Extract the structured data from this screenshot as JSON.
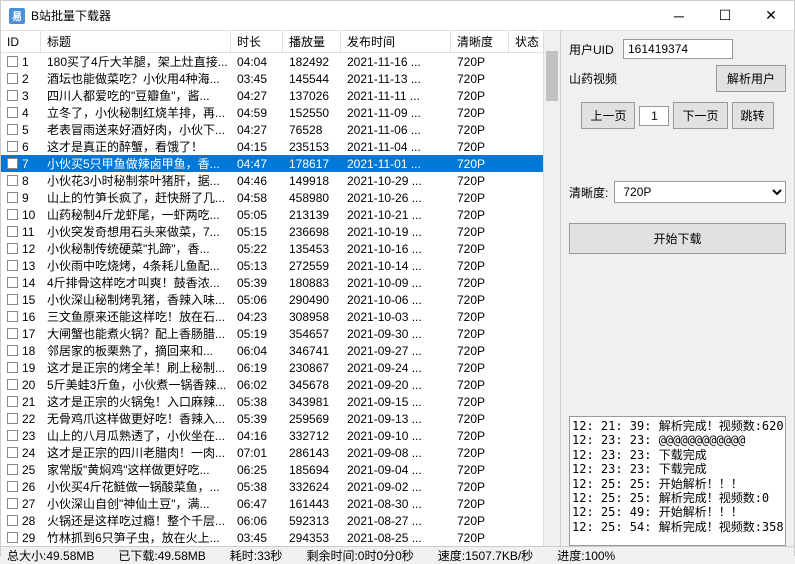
{
  "window": {
    "title": "B站批量下载器"
  },
  "columns": {
    "id": "ID",
    "title": "标题",
    "duration": "时长",
    "plays": "播放量",
    "pubtime": "发布时间",
    "resolution": "清晰度",
    "status": "状态"
  },
  "rows": [
    {
      "id": "1",
      "title": "180买了4斤大羊腿，架上灶直接...",
      "dur": "04:04",
      "plays": "182492",
      "pub": "2021-11-16 ...",
      "res": "720P"
    },
    {
      "id": "2",
      "title": "酒坛也能做菜吃？小伙用4种海...",
      "dur": "03:45",
      "plays": "145544",
      "pub": "2021-11-13 ...",
      "res": "720P"
    },
    {
      "id": "3",
      "title": "四川人都爱吃的\"豆瓣鱼\"，酱...",
      "dur": "04:27",
      "plays": "137026",
      "pub": "2021-11-11 ...",
      "res": "720P"
    },
    {
      "id": "4",
      "title": "立冬了，小伙秘制红烧羊排，再...",
      "dur": "04:59",
      "plays": "152550",
      "pub": "2021-11-09 ...",
      "res": "720P"
    },
    {
      "id": "5",
      "title": "老表冒雨送来好酒好肉，小伙下...",
      "dur": "04:27",
      "plays": "76528",
      "pub": "2021-11-06 ...",
      "res": "720P"
    },
    {
      "id": "6",
      "title": "这才是真正的醉蟹，看饿了！",
      "dur": "04:15",
      "plays": "235153",
      "pub": "2021-11-04 ...",
      "res": "720P"
    },
    {
      "id": "7",
      "title": "小伙买5只甲鱼做辣卤甲鱼，香...",
      "dur": "04:47",
      "plays": "178617",
      "pub": "2021-11-01 ...",
      "res": "720P",
      "selected": true
    },
    {
      "id": "8",
      "title": "小伙花3小时秘制茶叶猪肝，据...",
      "dur": "04:46",
      "plays": "149918",
      "pub": "2021-10-29 ...",
      "res": "720P"
    },
    {
      "id": "9",
      "title": "山上的竹笋长疯了，赶快掰了几...",
      "dur": "04:58",
      "plays": "458980",
      "pub": "2021-10-26 ...",
      "res": "720P"
    },
    {
      "id": "10",
      "title": "山药秘制4斤龙虾尾，一虾两吃...",
      "dur": "05:05",
      "plays": "213139",
      "pub": "2021-10-21 ...",
      "res": "720P"
    },
    {
      "id": "11",
      "title": "小伙突发奇想用石头来做菜，7...",
      "dur": "05:15",
      "plays": "236698",
      "pub": "2021-10-19 ...",
      "res": "720P"
    },
    {
      "id": "12",
      "title": "小伙秘制传统硬菜\"扎蹄\"，香...",
      "dur": "05:22",
      "plays": "135453",
      "pub": "2021-10-16 ...",
      "res": "720P"
    },
    {
      "id": "13",
      "title": "小伙雨中吃烧烤，4条耗儿鱼配...",
      "dur": "05:13",
      "plays": "272559",
      "pub": "2021-10-14 ...",
      "res": "720P"
    },
    {
      "id": "14",
      "title": "4斤排骨这样吃才叫爽！鼓香浓...",
      "dur": "05:39",
      "plays": "180883",
      "pub": "2021-10-09 ...",
      "res": "720P"
    },
    {
      "id": "15",
      "title": "小伙深山秘制烤乳猪，香辣入味...",
      "dur": "05:06",
      "plays": "290490",
      "pub": "2021-10-06 ...",
      "res": "720P"
    },
    {
      "id": "16",
      "title": "三文鱼原来还能这样吃！放在石...",
      "dur": "04:23",
      "plays": "308958",
      "pub": "2021-10-03 ...",
      "res": "720P"
    },
    {
      "id": "17",
      "title": "大闸蟹也能煮火锅？配上香肠腊...",
      "dur": "05:19",
      "plays": "354657",
      "pub": "2021-09-30 ...",
      "res": "720P"
    },
    {
      "id": "18",
      "title": "邻居家的板栗熟了，摘回来和...",
      "dur": "06:04",
      "plays": "346741",
      "pub": "2021-09-27 ...",
      "res": "720P"
    },
    {
      "id": "19",
      "title": "这才是正宗的烤全羊！刷上秘制...",
      "dur": "06:19",
      "plays": "230867",
      "pub": "2021-09-24 ...",
      "res": "720P"
    },
    {
      "id": "20",
      "title": "5斤美蛙3斤鱼，小伙煮一锅香辣...",
      "dur": "06:02",
      "plays": "345678",
      "pub": "2021-09-20 ...",
      "res": "720P"
    },
    {
      "id": "21",
      "title": "这才是正宗的火锅兔！入口麻辣...",
      "dur": "05:38",
      "plays": "343981",
      "pub": "2021-09-15 ...",
      "res": "720P"
    },
    {
      "id": "22",
      "title": "无骨鸡爪这样做更好吃！香辣入...",
      "dur": "05:39",
      "plays": "259569",
      "pub": "2021-09-13 ...",
      "res": "720P"
    },
    {
      "id": "23",
      "title": "山上的八月瓜熟透了，小伙坐在...",
      "dur": "04:16",
      "plays": "332712",
      "pub": "2021-09-10 ...",
      "res": "720P"
    },
    {
      "id": "24",
      "title": "这才是正宗的四川老腊肉！一肉...",
      "dur": "07:01",
      "plays": "286143",
      "pub": "2021-09-08 ...",
      "res": "720P"
    },
    {
      "id": "25",
      "title": "家常版\"黄焖鸡\"这样做更好吃...",
      "dur": "06:25",
      "plays": "185694",
      "pub": "2021-09-04 ...",
      "res": "720P"
    },
    {
      "id": "26",
      "title": "小伙买4斤花鲢做一锅酸菜鱼，...",
      "dur": "05:38",
      "plays": "332624",
      "pub": "2021-09-02 ...",
      "res": "720P"
    },
    {
      "id": "27",
      "title": "小伙深山自创\"神仙土豆\"，满...",
      "dur": "06:47",
      "plays": "161443",
      "pub": "2021-08-30 ...",
      "res": "720P"
    },
    {
      "id": "28",
      "title": "火锅还是这样吃过瘾！整个千层...",
      "dur": "06:06",
      "plays": "592313",
      "pub": "2021-08-27 ...",
      "res": "720P"
    },
    {
      "id": "29",
      "title": "竹林抓到6只笋子虫，放在火上...",
      "dur": "03:45",
      "plays": "294353",
      "pub": "2021-08-25 ...",
      "res": "720P"
    }
  ],
  "right": {
    "uid_label": "用户UID",
    "uid_value": "161419374",
    "name_label": "山药视频",
    "parse_user_btn": "解析用户",
    "prev_btn": "上一页",
    "page_value": "1",
    "next_btn": "下一页",
    "jump_btn": "跳转",
    "resolution_label": "清晰度:",
    "resolution_value": "720P",
    "start_btn": "开始下载"
  },
  "log_lines": [
    "12: 21: 39: 解析完成！视频数:620",
    "12: 23: 23: @@@@@@@@@@@@",
    "12: 23: 23: 下载完成  ",
    "12: 23: 23: 下载完成  ",
    "12: 25: 25: 开始解析！！！",
    "12: 25: 25: 解析完成！视频数:0",
    "12: 25: 49: 开始解析！！！",
    "12: 25: 54: 解析完成！视频数:358"
  ],
  "status": {
    "total": "总大小:49.58MB",
    "downloaded": "已下载:49.58MB",
    "elapsed": "耗时:33秒",
    "remain": "剩余时间:0时0分0秒",
    "speed": "速度:1507.7KB/秒",
    "progress": "进度:100%"
  }
}
